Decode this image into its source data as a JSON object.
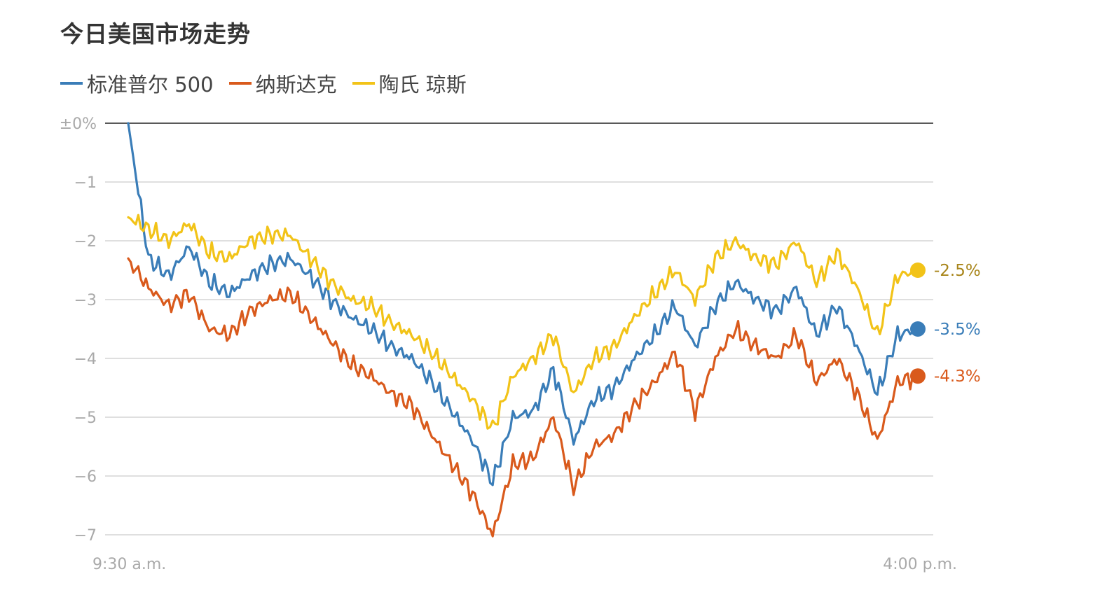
{
  "chart_data": {
    "type": "line",
    "title": "今日美国市场走势",
    "xlabel": "",
    "ylabel": "",
    "x_ticks": [
      "9:30 a.m.",
      "4:00 p.m."
    ],
    "y_ticks": [
      {
        "value": 0,
        "label": "±0%"
      },
      {
        "value": -1,
        "label": "−1"
      },
      {
        "value": -2,
        "label": "−2"
      },
      {
        "value": -3,
        "label": "−3"
      },
      {
        "value": -4,
        "label": "−4"
      },
      {
        "value": -5,
        "label": "−5"
      },
      {
        "value": -6,
        "label": "−6"
      },
      {
        "value": -7,
        "label": "−7"
      }
    ],
    "ylim": [
      -7.2,
      0
    ],
    "grid": true,
    "legend_position": "top-left",
    "x": [
      "9:30",
      "9:40",
      "9:50",
      "10:00",
      "10:10",
      "10:20",
      "10:30",
      "10:40",
      "10:50",
      "11:00",
      "11:10",
      "11:20",
      "11:30",
      "11:40",
      "11:50",
      "12:00",
      "12:10",
      "12:20",
      "12:30",
      "12:40",
      "12:50",
      "13:00",
      "13:10",
      "13:20",
      "13:30",
      "13:40",
      "13:50",
      "14:00",
      "14:10",
      "14:20",
      "14:30",
      "14:40",
      "14:50",
      "15:00",
      "15:10",
      "15:20",
      "15:30",
      "15:40",
      "15:50",
      "16:00"
    ],
    "series": [
      {
        "name": "标准普尔 500",
        "color": "#3a7db8",
        "end_label": "-3.5%",
        "values": [
          0.0,
          -2.3,
          -2.6,
          -2.1,
          -2.7,
          -2.9,
          -2.6,
          -2.4,
          -2.3,
          -2.6,
          -3.0,
          -3.3,
          -3.5,
          -3.8,
          -4.0,
          -4.4,
          -4.9,
          -5.4,
          -6.1,
          -5.0,
          -4.9,
          -4.2,
          -5.4,
          -4.7,
          -4.5,
          -4.0,
          -3.6,
          -3.1,
          -3.8,
          -3.1,
          -2.7,
          -3.0,
          -3.2,
          -2.8,
          -3.6,
          -3.1,
          -3.8,
          -4.6,
          -3.6,
          -3.5
        ]
      },
      {
        "name": "纳斯达克",
        "color": "#d95a1c",
        "end_label": "-4.3%",
        "values": [
          -2.3,
          -2.8,
          -3.1,
          -2.9,
          -3.5,
          -3.6,
          -3.2,
          -3.0,
          -2.9,
          -3.3,
          -3.7,
          -4.1,
          -4.3,
          -4.6,
          -4.8,
          -5.3,
          -5.8,
          -6.3,
          -7.0,
          -5.8,
          -5.7,
          -5.0,
          -6.2,
          -5.5,
          -5.3,
          -4.8,
          -4.4,
          -3.9,
          -4.9,
          -4.0,
          -3.5,
          -3.8,
          -4.0,
          -3.6,
          -4.4,
          -4.0,
          -4.6,
          -5.4,
          -4.4,
          -4.3
        ]
      },
      {
        "name": "陶氏 琼斯",
        "color": "#f2c318",
        "end_label": "-2.5%",
        "values": [
          -1.6,
          -1.8,
          -2.0,
          -1.7,
          -2.2,
          -2.3,
          -2.0,
          -1.9,
          -1.9,
          -2.3,
          -2.7,
          -3.0,
          -3.1,
          -3.4,
          -3.6,
          -3.9,
          -4.3,
          -4.7,
          -5.2,
          -4.3,
          -4.0,
          -3.6,
          -4.6,
          -4.0,
          -3.8,
          -3.3,
          -2.9,
          -2.5,
          -3.0,
          -2.3,
          -2.0,
          -2.3,
          -2.4,
          -2.0,
          -2.7,
          -2.2,
          -2.8,
          -3.6,
          -2.6,
          -2.5
        ]
      }
    ]
  }
}
